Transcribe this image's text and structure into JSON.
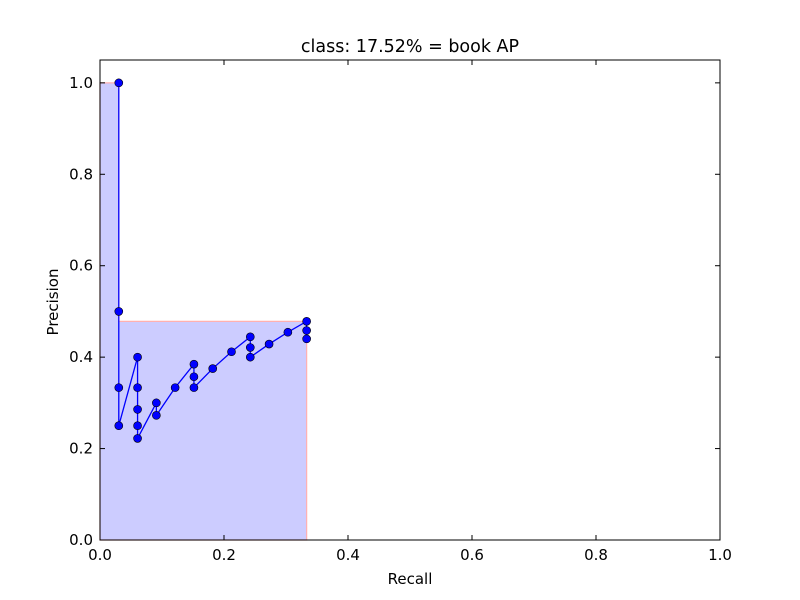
{
  "chart_data": {
    "type": "line",
    "title": "class: 17.52% = book AP",
    "xlabel": "Recall",
    "ylabel": "Precision",
    "xlim": [
      0.0,
      1.0
    ],
    "ylim": [
      0.0,
      1.05
    ],
    "x_ticks": [
      "0.0",
      "0.2",
      "0.4",
      "0.6",
      "0.8",
      "1.0"
    ],
    "y_ticks": [
      "0.0",
      "0.2",
      "0.4",
      "0.6",
      "0.8",
      "1.0"
    ],
    "grid": false,
    "colors": {
      "line": "#0000ff",
      "marker": "#0000ff",
      "area_fill": "#ccccff",
      "area_edge": "#ffb0b0"
    },
    "series": [
      {
        "points": [
          {
            "x": 0.0303,
            "y": 1.0
          },
          {
            "x": 0.0303,
            "y": 0.5
          },
          {
            "x": 0.0303,
            "y": 0.3333
          },
          {
            "x": 0.0303,
            "y": 0.25
          },
          {
            "x": 0.0606,
            "y": 0.4
          },
          {
            "x": 0.0606,
            "y": 0.3333
          },
          {
            "x": 0.0606,
            "y": 0.2857
          },
          {
            "x": 0.0606,
            "y": 0.25
          },
          {
            "x": 0.0606,
            "y": 0.2222
          },
          {
            "x": 0.0909,
            "y": 0.3
          },
          {
            "x": 0.0909,
            "y": 0.2727
          },
          {
            "x": 0.1212,
            "y": 0.3333
          },
          {
            "x": 0.1515,
            "y": 0.3846
          },
          {
            "x": 0.1515,
            "y": 0.3571
          },
          {
            "x": 0.1515,
            "y": 0.3333
          },
          {
            "x": 0.1818,
            "y": 0.375
          },
          {
            "x": 0.2121,
            "y": 0.4118
          },
          {
            "x": 0.2424,
            "y": 0.4444
          },
          {
            "x": 0.2424,
            "y": 0.4211
          },
          {
            "x": 0.2424,
            "y": 0.4
          },
          {
            "x": 0.2727,
            "y": 0.4286
          },
          {
            "x": 0.303,
            "y": 0.4545
          },
          {
            "x": 0.3333,
            "y": 0.4783
          },
          {
            "x": 0.3333,
            "y": 0.4583
          },
          {
            "x": 0.3333,
            "y": 0.44
          }
        ]
      }
    ],
    "interpolated_area": [
      {
        "x": 0.0,
        "y": 1.0
      },
      {
        "x": 0.0303,
        "y": 1.0
      },
      {
        "x": 0.0303,
        "y": 0.4783
      },
      {
        "x": 0.3333,
        "y": 0.4783
      },
      {
        "x": 0.3333,
        "y": 0.0
      },
      {
        "x": 0.0,
        "y": 0.0
      }
    ]
  }
}
